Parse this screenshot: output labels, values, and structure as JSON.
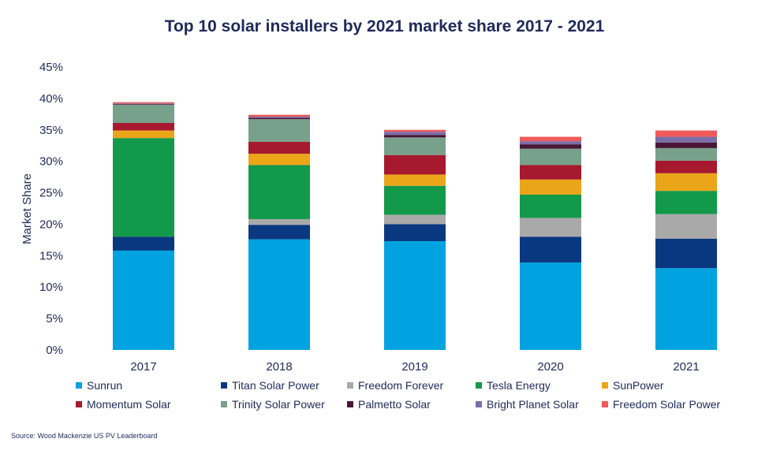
{
  "chart_data": {
    "type": "bar",
    "stacked": true,
    "title": "Top 10 solar installers by 2021 market share 2017 - 2021",
    "xlabel": "",
    "ylabel": "Market Share",
    "ylim": [
      0,
      45
    ],
    "yticks": [
      "0%",
      "5%",
      "10%",
      "15%",
      "20%",
      "25%",
      "30%",
      "35%",
      "40%",
      "45%"
    ],
    "categories": [
      "2017",
      "2018",
      "2019",
      "2020",
      "2021"
    ],
    "grid": false,
    "legend_position": "bottom",
    "series": [
      {
        "name": "Sunrun",
        "color": "#00a3e0",
        "values": [
          15.8,
          17.6,
          17.3,
          13.9,
          13.0
        ]
      },
      {
        "name": "Titan Solar Power",
        "color": "#0a3880",
        "values": [
          2.2,
          2.3,
          2.7,
          4.1,
          4.7
        ]
      },
      {
        "name": "Freedom Forever",
        "color": "#a9a9a9",
        "values": [
          0.0,
          0.9,
          1.5,
          3.0,
          3.9
        ]
      },
      {
        "name": "Tesla Energy",
        "color": "#13994a",
        "values": [
          15.7,
          8.6,
          4.6,
          3.7,
          3.7
        ]
      },
      {
        "name": "SunPower",
        "color": "#eaa519",
        "values": [
          1.2,
          1.8,
          1.8,
          2.4,
          2.8
        ]
      },
      {
        "name": "Momentum Solar",
        "color": "#a6192e",
        "values": [
          1.2,
          1.9,
          3.1,
          2.3,
          2.0
        ]
      },
      {
        "name": "Trinity Solar Power",
        "color": "#77a18a",
        "values": [
          2.9,
          3.6,
          2.8,
          2.6,
          2.0
        ]
      },
      {
        "name": "Palmetto Solar",
        "color": "#4a1638",
        "values": [
          0.1,
          0.2,
          0.4,
          0.7,
          0.9
        ]
      },
      {
        "name": "Bright Planet Solar",
        "color": "#7b6ea8",
        "values": [
          0.1,
          0.2,
          0.5,
          0.5,
          0.9
        ]
      },
      {
        "name": "Freedom Solar Power",
        "color": "#f05a5a",
        "values": [
          0.2,
          0.3,
          0.3,
          0.7,
          1.0
        ]
      }
    ]
  },
  "source": "Source: Wood Mackenzie US PV Leaderboard"
}
